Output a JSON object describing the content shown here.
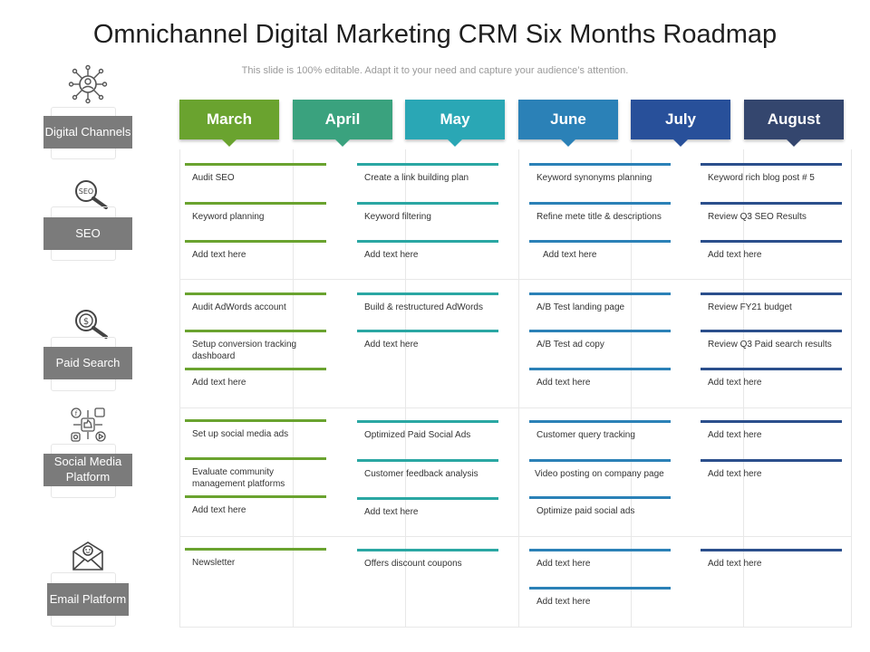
{
  "title": "Omnichannel Digital Marketing CRM Six Months Roadmap",
  "subtitle": "This slide is 100% editable. Adapt it to your need and capture your audience’s attention.",
  "months": [
    {
      "label": "March",
      "color": "#6aa32f"
    },
    {
      "label": "April",
      "color": "#3aa27e"
    },
    {
      "label": "May",
      "color": "#2aa7b5"
    },
    {
      "label": "June",
      "color": "#2b81b7"
    },
    {
      "label": "July",
      "color": "#28509a"
    },
    {
      "label": "August",
      "color": "#34466e"
    }
  ],
  "categories": [
    {
      "label": "Digital Channels",
      "icon": "network-icon"
    },
    {
      "label": "SEO",
      "icon": "seo-magnifier-icon"
    },
    {
      "label": "Paid Search",
      "icon": "dollar-magnifier-icon"
    },
    {
      "label": "Social Media Platform",
      "icon": "social-media-icon"
    },
    {
      "label": "Email Platform",
      "icon": "email-icon"
    }
  ],
  "columns": [
    {
      "name": "March",
      "bar_color": "#6aa32f",
      "entries": [
        "Audit SEO",
        "Keyword planning",
        "Add text here",
        "Audit AdWords account",
        "Setup conversion tracking dashboard",
        "Add text here",
        "Set up social media ads",
        "Evaluate community management platforms",
        "Add text here",
        "Newsletter"
      ]
    },
    {
      "name": "May",
      "bar_color": "#2aa7a3",
      "entries": [
        "Create a link building plan",
        "Keyword filtering",
        "Add text here",
        "Build & restructured AdWords",
        "Add text here",
        "Optimized Paid Social Ads",
        "Customer feedback analysis",
        "Add text here",
        "Offers discount coupons"
      ]
    },
    {
      "name": "June",
      "bar_color": "#2b81b7",
      "entries": [
        "Keyword synonyms planning",
        "Refine mete title & descriptions",
        "Add text here",
        "A/B Test landing page",
        "A/B Test ad copy",
        "Add text here",
        "Customer query tracking",
        "Video posting on company page",
        "Optimize paid social ads",
        "Add text here",
        "Add text here"
      ]
    },
    {
      "name": "August",
      "bar_color": "#2b4f8c",
      "entries": [
        "Keyword rich blog post # 5",
        "Review Q3 SEO Results",
        "Add text here",
        "Review FY21 budget",
        "Review Q3 Paid search results",
        "Add text here",
        "Add text here",
        "Add text here",
        "Add text here"
      ]
    }
  ]
}
